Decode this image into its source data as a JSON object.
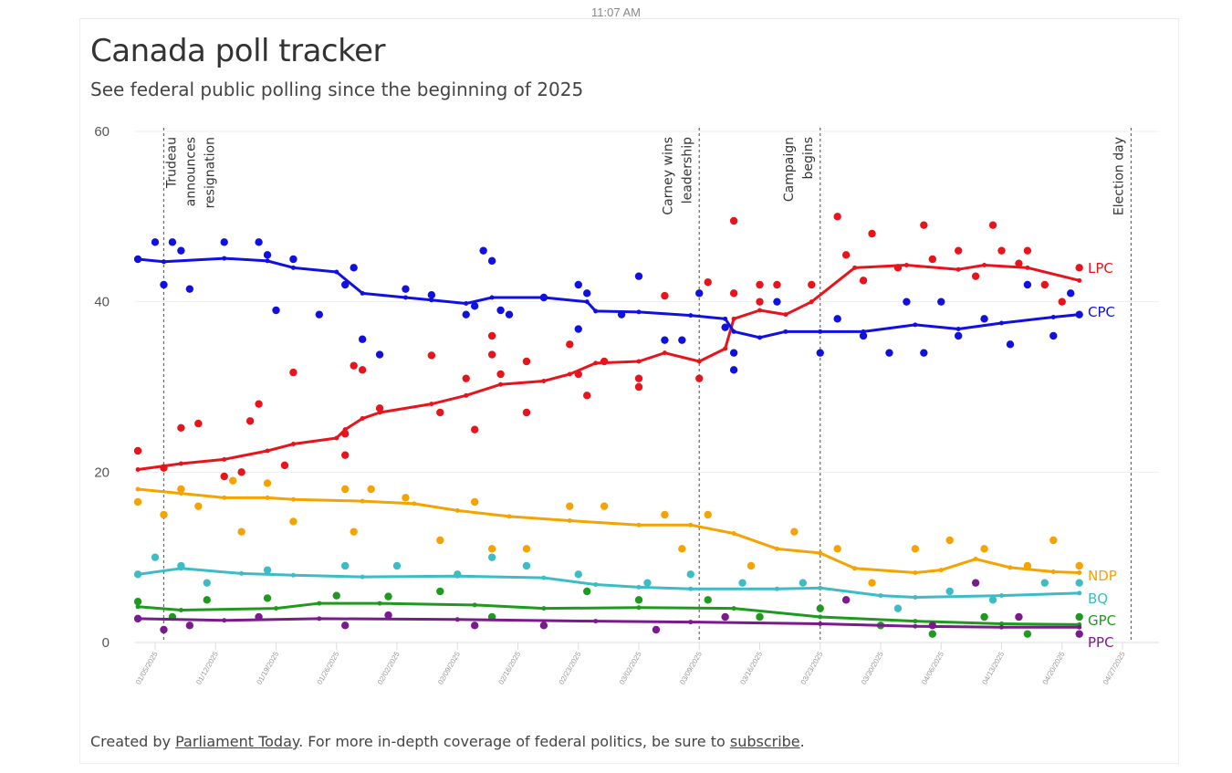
{
  "status_bar": {
    "time": "11:07 AM"
  },
  "header": {
    "title": "Canada poll tracker",
    "subtitle": "See federal public polling since the beginning of 2025"
  },
  "footer": {
    "prefix": "Created by ",
    "link1": "Parliament Today",
    "middle": ". For more in-depth coverage of federal politics, be sure to ",
    "link2": "subscribe",
    "suffix": "."
  },
  "chart_data": {
    "type": "scatter",
    "x_unit": "days since 2025-01-05",
    "ylim": [
      0,
      60
    ],
    "yticks": [
      0,
      20,
      40,
      60
    ],
    "xticks": [
      "01/05/2025",
      "01/12/2025",
      "01/19/2025",
      "01/26/2025",
      "02/02/2025",
      "02/09/2025",
      "02/16/2025",
      "02/23/2025",
      "03/02/2025",
      "03/09/2025",
      "03/16/2025",
      "03/23/2025",
      "03/30/2025",
      "04/06/2025",
      "04/13/2025",
      "04/20/2025",
      "04/27/2025"
    ],
    "grid": true,
    "annotations": [
      {
        "day": 1,
        "lines": [
          "Trudeau",
          "announces",
          "resignation"
        ],
        "side": "right"
      },
      {
        "day": 63,
        "lines": [
          "Carney wins",
          "leadership"
        ],
        "side": "left"
      },
      {
        "day": 77,
        "lines": [
          "Campaign",
          "begins"
        ],
        "side": "left"
      },
      {
        "day": 113,
        "lines": [
          "Election day"
        ],
        "side": "left"
      }
    ],
    "series": [
      {
        "name": "LPC",
        "color": "#e8141c",
        "trend": [
          [
            -2,
            20.3
          ],
          [
            3,
            21
          ],
          [
            8,
            21.5
          ],
          [
            13,
            22.5
          ],
          [
            16,
            23.3
          ],
          [
            21,
            24
          ],
          [
            22,
            25
          ],
          [
            24,
            26.3
          ],
          [
            26,
            27
          ],
          [
            32,
            28
          ],
          [
            36,
            29
          ],
          [
            40,
            30.3
          ],
          [
            45,
            30.7
          ],
          [
            48,
            31.5
          ],
          [
            51,
            32.8
          ],
          [
            56,
            33
          ],
          [
            59,
            34
          ],
          [
            63,
            33
          ],
          [
            66,
            34.5
          ],
          [
            67,
            38
          ],
          [
            70,
            39
          ],
          [
            73,
            38.5
          ],
          [
            76,
            40
          ],
          [
            81,
            44
          ],
          [
            87,
            44.3
          ],
          [
            93,
            43.8
          ],
          [
            96,
            44.3
          ],
          [
            101,
            44
          ],
          [
            107,
            42.5
          ]
        ],
        "polls": [
          [
            -2,
            22.5
          ],
          [
            1,
            20.5
          ],
          [
            3,
            25.2
          ],
          [
            5,
            25.7
          ],
          [
            8,
            19.5
          ],
          [
            10,
            20
          ],
          [
            11,
            26
          ],
          [
            12,
            28
          ],
          [
            15,
            20.8
          ],
          [
            16,
            31.7
          ],
          [
            22,
            24.5
          ],
          [
            22,
            22
          ],
          [
            23,
            32.5
          ],
          [
            24,
            32
          ],
          [
            26,
            27.5
          ],
          [
            32,
            33.7
          ],
          [
            33,
            27
          ],
          [
            36,
            31
          ],
          [
            37,
            25
          ],
          [
            39,
            33.8
          ],
          [
            39,
            36
          ],
          [
            40,
            31.5
          ],
          [
            43,
            27
          ],
          [
            43,
            33
          ],
          [
            48,
            35
          ],
          [
            49,
            31.5
          ],
          [
            50,
            29
          ],
          [
            52,
            33
          ],
          [
            56,
            31
          ],
          [
            56,
            30
          ],
          [
            59,
            40.7
          ],
          [
            63,
            31
          ],
          [
            64,
            42.3
          ],
          [
            67,
            41
          ],
          [
            67,
            49.5
          ],
          [
            70,
            42
          ],
          [
            70,
            40
          ],
          [
            72,
            42
          ],
          [
            76,
            42
          ],
          [
            79,
            50
          ],
          [
            80,
            45.5
          ],
          [
            82,
            42.5
          ],
          [
            83,
            48
          ],
          [
            86,
            44
          ],
          [
            89,
            49
          ],
          [
            90,
            45
          ],
          [
            93,
            46
          ],
          [
            95,
            43
          ],
          [
            97,
            49
          ],
          [
            98,
            46
          ],
          [
            100,
            44.5
          ],
          [
            101,
            46
          ],
          [
            103,
            42
          ],
          [
            105,
            40
          ],
          [
            107,
            44
          ]
        ]
      },
      {
        "name": "CPC",
        "color": "#1010e0",
        "trend": [
          [
            -2,
            45
          ],
          [
            1,
            44.7
          ],
          [
            8,
            45.1
          ],
          [
            13,
            44.8
          ],
          [
            16,
            44
          ],
          [
            21,
            43.5
          ],
          [
            24,
            41
          ],
          [
            29,
            40.5
          ],
          [
            32,
            40.2
          ],
          [
            36,
            39.8
          ],
          [
            39,
            40.5
          ],
          [
            45,
            40.5
          ],
          [
            50,
            40
          ],
          [
            51,
            38.9
          ],
          [
            56,
            38.8
          ],
          [
            62,
            38.4
          ],
          [
            66,
            38
          ],
          [
            67,
            36.5
          ],
          [
            70,
            35.8
          ],
          [
            73,
            36.5
          ],
          [
            77,
            36.5
          ],
          [
            82,
            36.5
          ],
          [
            88,
            37.3
          ],
          [
            93,
            36.8
          ],
          [
            98,
            37.5
          ],
          [
            104,
            38.2
          ],
          [
            107,
            38.5
          ]
        ],
        "polls": [
          [
            -2,
            45
          ],
          [
            0,
            47
          ],
          [
            1,
            42
          ],
          [
            2,
            47
          ],
          [
            3,
            46
          ],
          [
            4,
            41.5
          ],
          [
            8,
            47
          ],
          [
            12,
            47
          ],
          [
            13,
            45.5
          ],
          [
            14,
            39
          ],
          [
            16,
            45
          ],
          [
            19,
            38.5
          ],
          [
            22,
            42
          ],
          [
            23,
            44
          ],
          [
            24,
            35.6
          ],
          [
            26,
            33.8
          ],
          [
            29,
            41.5
          ],
          [
            32,
            40.8
          ],
          [
            36,
            38.5
          ],
          [
            37,
            39.5
          ],
          [
            38,
            46
          ],
          [
            39,
            44.8
          ],
          [
            40,
            39
          ],
          [
            41,
            38.5
          ],
          [
            45,
            40.5
          ],
          [
            49,
            36.8
          ],
          [
            49,
            42
          ],
          [
            50,
            41
          ],
          [
            54,
            38.5
          ],
          [
            56,
            43
          ],
          [
            59,
            35.5
          ],
          [
            61,
            35.5
          ],
          [
            63,
            41
          ],
          [
            66,
            37
          ],
          [
            67,
            34
          ],
          [
            67,
            32
          ],
          [
            72,
            40
          ],
          [
            77,
            34
          ],
          [
            79,
            38
          ],
          [
            82,
            36
          ],
          [
            85,
            34
          ],
          [
            87,
            40
          ],
          [
            89,
            34
          ],
          [
            91,
            40
          ],
          [
            93,
            36
          ],
          [
            96,
            38
          ],
          [
            99,
            35
          ],
          [
            101,
            42
          ],
          [
            104,
            36
          ],
          [
            106,
            41
          ],
          [
            107,
            38.5
          ]
        ]
      },
      {
        "name": "NDP",
        "color": "#f4a300",
        "trend": [
          [
            -2,
            18
          ],
          [
            3,
            17.5
          ],
          [
            8,
            17
          ],
          [
            13,
            17
          ],
          [
            16,
            16.8
          ],
          [
            24,
            16.6
          ],
          [
            30,
            16.3
          ],
          [
            35,
            15.5
          ],
          [
            41,
            14.8
          ],
          [
            48,
            14.3
          ],
          [
            56,
            13.8
          ],
          [
            62,
            13.8
          ],
          [
            67,
            12.8
          ],
          [
            72,
            11
          ],
          [
            77,
            10.5
          ],
          [
            81,
            8.7
          ],
          [
            88,
            8.2
          ],
          [
            91,
            8.5
          ],
          [
            95,
            9.8
          ],
          [
            99,
            8.8
          ],
          [
            104,
            8.3
          ],
          [
            107,
            8.2
          ]
        ],
        "polls": [
          [
            -2,
            16.5
          ],
          [
            1,
            15
          ],
          [
            3,
            18
          ],
          [
            5,
            16
          ],
          [
            9,
            19
          ],
          [
            10,
            13
          ],
          [
            13,
            18.7
          ],
          [
            16,
            14.2
          ],
          [
            22,
            18
          ],
          [
            23,
            13
          ],
          [
            25,
            18
          ],
          [
            29,
            17
          ],
          [
            33,
            12
          ],
          [
            37,
            16.5
          ],
          [
            39,
            11
          ],
          [
            43,
            11
          ],
          [
            48,
            16
          ],
          [
            52,
            16
          ],
          [
            59,
            15
          ],
          [
            61,
            11
          ],
          [
            64,
            15
          ],
          [
            69,
            9
          ],
          [
            74,
            13
          ],
          [
            79,
            11
          ],
          [
            83,
            7
          ],
          [
            88,
            11
          ],
          [
            92,
            12
          ],
          [
            96,
            11
          ],
          [
            101,
            9
          ],
          [
            104,
            12
          ],
          [
            107,
            9
          ]
        ]
      },
      {
        "name": "BQ",
        "color": "#3cbcc4",
        "trend": [
          [
            -2,
            8
          ],
          [
            3,
            8.7
          ],
          [
            10,
            8.1
          ],
          [
            16,
            7.9
          ],
          [
            24,
            7.7
          ],
          [
            35,
            7.8
          ],
          [
            45,
            7.6
          ],
          [
            51,
            6.8
          ],
          [
            56,
            6.5
          ],
          [
            62,
            6.3
          ],
          [
            72,
            6.3
          ],
          [
            77,
            6.4
          ],
          [
            84,
            5.5
          ],
          [
            88,
            5.3
          ],
          [
            98,
            5.5
          ],
          [
            107,
            5.8
          ]
        ],
        "polls": [
          [
            -2,
            8
          ],
          [
            0,
            10
          ],
          [
            3,
            9
          ],
          [
            6,
            7
          ],
          [
            13,
            8.5
          ],
          [
            22,
            9
          ],
          [
            28,
            9
          ],
          [
            35,
            8
          ],
          [
            39,
            10
          ],
          [
            43,
            9
          ],
          [
            49,
            8
          ],
          [
            57,
            7
          ],
          [
            62,
            8
          ],
          [
            68,
            7
          ],
          [
            75,
            7
          ],
          [
            80,
            5
          ],
          [
            86,
            4
          ],
          [
            92,
            6
          ],
          [
            97,
            5
          ],
          [
            103,
            7
          ],
          [
            107,
            7
          ]
        ]
      },
      {
        "name": "GPC",
        "color": "#1e9a1e",
        "trend": [
          [
            -2,
            4.2
          ],
          [
            3,
            3.8
          ],
          [
            14,
            4
          ],
          [
            19,
            4.6
          ],
          [
            26,
            4.6
          ],
          [
            37,
            4.4
          ],
          [
            45,
            4
          ],
          [
            56,
            4.1
          ],
          [
            67,
            4
          ],
          [
            77,
            3
          ],
          [
            88,
            2.5
          ],
          [
            98,
            2.2
          ],
          [
            107,
            2.1
          ]
        ],
        "polls": [
          [
            -2,
            4.8
          ],
          [
            2,
            3
          ],
          [
            6,
            5
          ],
          [
            13,
            5.2
          ],
          [
            21,
            5.5
          ],
          [
            27,
            5.4
          ],
          [
            33,
            6
          ],
          [
            39,
            3
          ],
          [
            50,
            6
          ],
          [
            56,
            5
          ],
          [
            64,
            5
          ],
          [
            70,
            3
          ],
          [
            77,
            4
          ],
          [
            84,
            2
          ],
          [
            90,
            1
          ],
          [
            96,
            3
          ],
          [
            101,
            1
          ],
          [
            107,
            3
          ]
        ]
      },
      {
        "name": "PPC",
        "color": "#7a1a8c",
        "trend": [
          [
            -2,
            2.8
          ],
          [
            8,
            2.6
          ],
          [
            19,
            2.8
          ],
          [
            35,
            2.7
          ],
          [
            51,
            2.5
          ],
          [
            62,
            2.4
          ],
          [
            77,
            2.2
          ],
          [
            88,
            1.9
          ],
          [
            98,
            1.8
          ],
          [
            107,
            1.8
          ]
        ],
        "polls": [
          [
            -2,
            2.8
          ],
          [
            1,
            1.5
          ],
          [
            4,
            2
          ],
          [
            12,
            3
          ],
          [
            22,
            2
          ],
          [
            27,
            3.2
          ],
          [
            37,
            2
          ],
          [
            45,
            2
          ],
          [
            58,
            1.5
          ],
          [
            66,
            3
          ],
          [
            80,
            5
          ],
          [
            90,
            2
          ],
          [
            95,
            7
          ],
          [
            100,
            3
          ],
          [
            107,
            1
          ]
        ]
      }
    ]
  }
}
